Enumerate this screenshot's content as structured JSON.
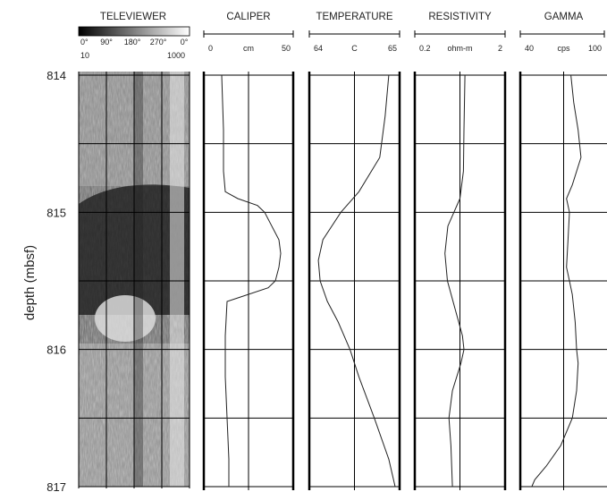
{
  "chart_data": {
    "type": "line",
    "ylabel": "depth (mbsf)",
    "ylim": [
      814,
      817
    ],
    "y_ticks": [
      "814",
      "815",
      "816",
      "817"
    ],
    "grid": true,
    "colors": {
      "curve": "#222222",
      "grid": "#000000"
    },
    "tracks": [
      {
        "id": "televiewer",
        "title": "TELEVIEWER",
        "kind": "image",
        "azimuth_labels": [
          "0°",
          "90°",
          "180°",
          "270°",
          "0°"
        ],
        "scale_min_label": "10",
        "scale_max_label": "1000"
      },
      {
        "id": "caliper",
        "title": "CALIPER",
        "min_label": "0",
        "unit": "cm",
        "max_label": "50",
        "xlim": [
          0,
          50
        ],
        "series": [
          {
            "depth": [
              814.0,
              814.4,
              814.7,
              814.85,
              814.9,
              814.95,
              815.0,
              815.1,
              815.2,
              815.3,
              815.4,
              815.5,
              815.55,
              815.62,
              815.65,
              815.9,
              816.2,
              816.5,
              816.8,
              817.0
            ],
            "values": [
              10,
              11,
              11,
              12,
              19,
              30,
              34,
              38,
              42,
              43,
              42,
              40,
              36,
              20,
              13,
              12,
              12,
              13,
              14,
              14
            ]
          }
        ]
      },
      {
        "id": "temperature",
        "title": "TEMPERATURE",
        "min_label": "64",
        "unit": "C",
        "max_label": "65",
        "xlim": [
          64,
          65
        ],
        "series": [
          {
            "depth": [
              814.0,
              814.3,
              814.6,
              814.85,
              815.0,
              815.2,
              815.35,
              815.5,
              815.65,
              815.8,
              816.0,
              816.2,
              816.5,
              816.8,
              817.0
            ],
            "values": [
              64.88,
              64.84,
              64.78,
              64.55,
              64.35,
              64.15,
              64.1,
              64.12,
              64.2,
              64.32,
              64.45,
              64.55,
              64.72,
              64.88,
              64.95
            ]
          }
        ]
      },
      {
        "id": "resistivity",
        "title": "RESISTIVITY",
        "min_label": "0.2",
        "unit": "ohm-m",
        "max_label": "2",
        "xlim": [
          0.2,
          2
        ],
        "series": [
          {
            "depth": [
              814.0,
              814.4,
              814.7,
              814.9,
              815.1,
              815.3,
              815.5,
              815.7,
              815.9,
              816.0,
              816.1,
              816.3,
              816.5,
              816.7,
              817.0
            ],
            "values": [
              1.2,
              1.18,
              1.17,
              1.1,
              0.86,
              0.8,
              0.85,
              1.0,
              1.15,
              1.18,
              1.12,
              0.95,
              0.88,
              0.92,
              0.95
            ]
          }
        ]
      },
      {
        "id": "gamma",
        "title": "GAMMA",
        "min_label": "40",
        "unit": "cps",
        "max_label": "100",
        "xlim": [
          40,
          100
        ],
        "series": [
          {
            "depth": [
              814.0,
              814.2,
              814.4,
              814.6,
              814.8,
              814.9,
              815.0,
              815.2,
              815.4,
              815.5,
              815.6,
              815.8,
              816.0,
              816.1,
              816.3,
              816.5,
              816.7,
              816.85,
              816.95,
              817.0
            ],
            "values": [
              75,
              77,
              80,
              82,
              76,
              72,
              74,
              73,
              72,
              74,
              76,
              78,
              79,
              80,
              79,
              76,
              68,
              58,
              50,
              48
            ]
          }
        ]
      }
    ]
  }
}
